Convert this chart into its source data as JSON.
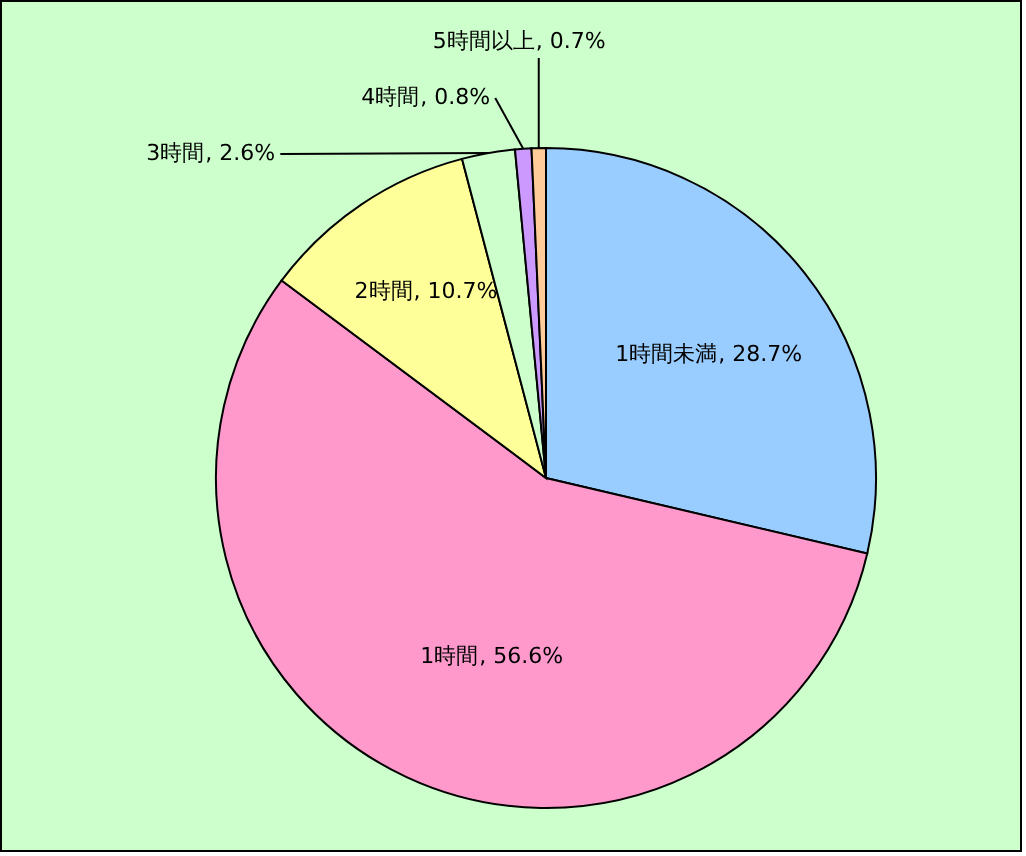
{
  "chart_data": {
    "type": "pie",
    "categories": [
      "1時間未満",
      "1時間",
      "2時間",
      "3時間",
      "4時間",
      "5時間以上"
    ],
    "values": [
      28.7,
      56.6,
      10.7,
      2.6,
      0.8,
      0.7
    ],
    "colors": [
      "#99ccff",
      "#ff99cc",
      "#ffff99",
      "#ccffcc",
      "#cc99ff",
      "#ffcc99"
    ],
    "value_labels": [
      ", 28.7%",
      ", 56.6%",
      ", 10.7%",
      ", 2.6%",
      ", 0.8%",
      ", 0.7%"
    ]
  }
}
